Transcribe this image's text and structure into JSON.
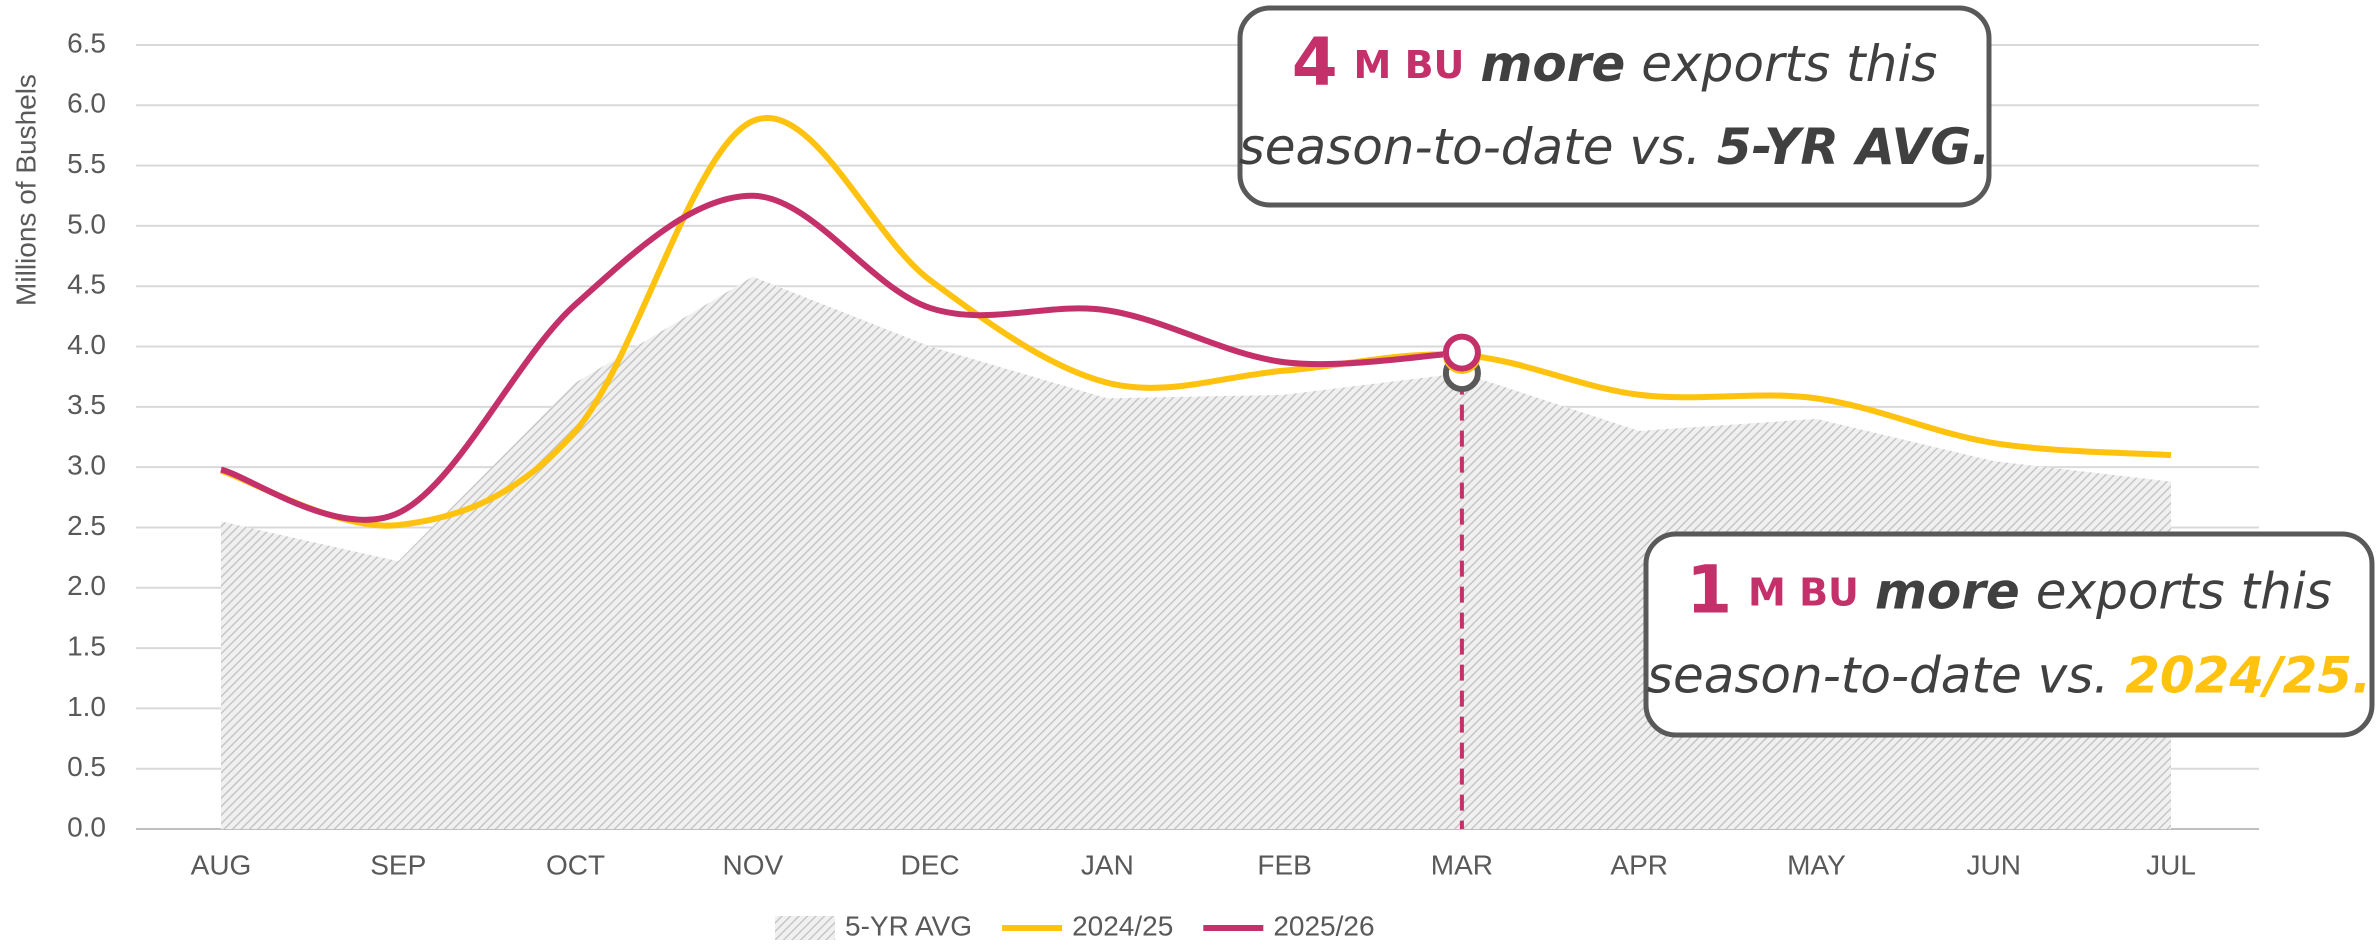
{
  "chart_data": {
    "type": "line",
    "y_label": "Millions of Bushels",
    "categories": [
      "AUG",
      "SEP",
      "OCT",
      "NOV",
      "DEC",
      "JAN",
      "FEB",
      "MAR",
      "APR",
      "MAY",
      "JUN",
      "JUL"
    ],
    "series": [
      {
        "name": "5-YR AVG",
        "color": "#c8c8c8",
        "style": "area",
        "values": [
          2.55,
          2.22,
          3.7,
          4.58,
          4.0,
          3.57,
          3.6,
          3.78,
          3.3,
          3.4,
          3.05,
          2.88
        ]
      },
      {
        "name": "2024/25",
        "color": "#ffc20e",
        "style": "line",
        "values": [
          2.97,
          2.52,
          3.3,
          5.87,
          4.55,
          3.7,
          3.8,
          3.93,
          3.6,
          3.57,
          3.2,
          3.1
        ]
      },
      {
        "name": "2025/26",
        "color": "#c4306a",
        "style": "line",
        "values": [
          2.98,
          2.62,
          4.35,
          5.25,
          4.32,
          4.3,
          3.87,
          3.95,
          null,
          null,
          null,
          null
        ]
      }
    ],
    "highlight_index": 7,
    "ylim": [
      0,
      6.5
    ],
    "yticks": [
      {
        "value": 0,
        "label": "0.0"
      },
      0.5,
      {
        "value": 1,
        "label": "1.0"
      },
      1.5,
      {
        "value": 2,
        "label": "2.0"
      },
      2.5,
      {
        "value": 3,
        "label": "3.0"
      },
      3.5,
      {
        "value": 4,
        "label": "4.0"
      },
      4.5,
      {
        "value": 5,
        "label": "5.0"
      },
      5.5,
      {
        "value": 6,
        "label": "6.0"
      },
      6.5
    ],
    "grid": true,
    "legend": "bottom",
    "annotations": [
      {
        "parts": [
          "4",
          "M BU",
          "more",
          "exports this",
          "season-to-date vs.",
          "5-YR AVG."
        ]
      },
      {
        "parts": [
          "1",
          "M BU",
          "more",
          "exports this",
          "season-to-date vs.",
          "2024/25."
        ]
      }
    ]
  }
}
